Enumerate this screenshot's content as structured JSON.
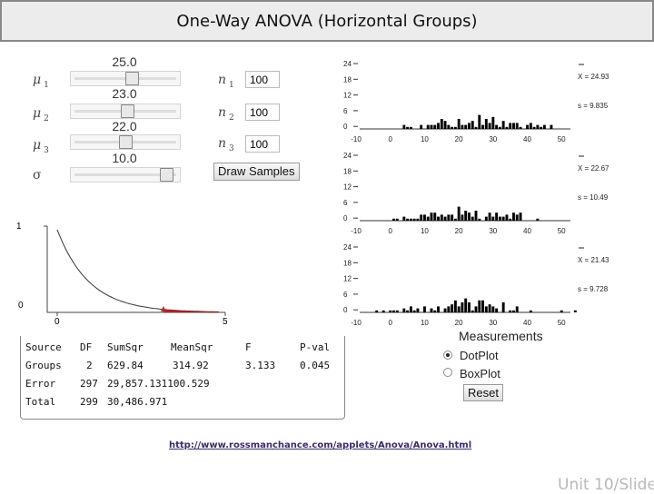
{
  "title": "One-Way ANOVA (Horizontal Groups)",
  "controls": {
    "mu1": {
      "symbol": "μ",
      "sub": "1",
      "value": "25.0",
      "fraction": 0.57
    },
    "mu2": {
      "symbol": "μ",
      "sub": "2",
      "value": "23.0",
      "fraction": 0.52
    },
    "mu3": {
      "symbol": "μ",
      "sub": "3",
      "value": "22.0",
      "fraction": 0.5
    },
    "sigma": {
      "symbol": "σ",
      "value": "10.0",
      "fraction": 0.93
    },
    "n1": {
      "symbol": "n",
      "sub": "1",
      "value": "100"
    },
    "n2": {
      "symbol": "n",
      "sub": "2",
      "value": "100"
    },
    "n3": {
      "symbol": "n",
      "sub": "3",
      "value": "100"
    },
    "draw_button": "Draw Samples"
  },
  "dotplots": [
    {
      "xbar": "X = 24.93",
      "s": "s = 9.835"
    },
    {
      "xbar": "X = 22.67",
      "s": "s = 10.49"
    },
    {
      "xbar": "X = 21.43",
      "s": "s = 9.728"
    }
  ],
  "dotplot_axis": {
    "y_ticks": [
      "24",
      "18",
      "12",
      "6",
      "0"
    ],
    "x_ticks": [
      "-10",
      "0",
      "10",
      "20",
      "30",
      "40",
      "50"
    ]
  },
  "fdist": {
    "y_ticks": [
      "1",
      "0"
    ],
    "x_ticks": [
      "0",
      "5"
    ]
  },
  "anova_table": {
    "headers": [
      "Source",
      "DF",
      "SumSqr",
      "MeanSqr",
      "F",
      "P-val"
    ],
    "groups": [
      "Groups",
      "2",
      "629.84",
      "314.92",
      "3.133",
      "0.045"
    ],
    "error": [
      "Error",
      "297",
      "29,857.131100.529"
    ],
    "total": [
      "Total",
      "299",
      "30,486.971"
    ]
  },
  "measurements": {
    "label": "Measurements",
    "options": [
      {
        "label": "DotPlot",
        "selected": true
      },
      {
        "label": "BoxPlot",
        "selected": false
      }
    ],
    "reset_button": "Reset"
  },
  "footer_link": "http://www.rossmanchance.com/applets/Anova/Anova.html",
  "slide_label": "Unit 10/Slide"
}
